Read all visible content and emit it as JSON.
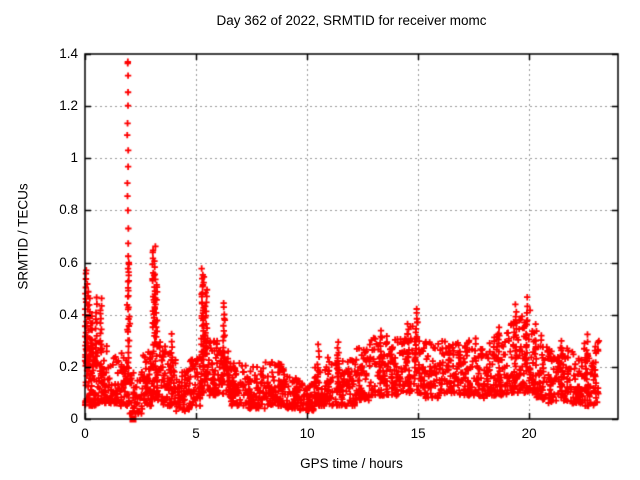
{
  "page": {
    "background": "#ffffff",
    "text_color": "#000000"
  },
  "chart_data": {
    "type": "scatter",
    "title": "Day 362 of 2022, SRMTID for receiver momc",
    "xlabel": "GPS time / hours",
    "ylabel": "SRMTID / TECUs",
    "xlim": [
      0,
      24
    ],
    "ylim": [
      0,
      1.4
    ],
    "xticks": [
      0,
      5,
      10,
      15,
      20
    ],
    "xtick_labels": [
      "0",
      "5",
      "10",
      "15",
      "20"
    ],
    "yticks": [
      0,
      0.2,
      0.4,
      0.6,
      0.8,
      1.0,
      1.2,
      1.4
    ],
    "ytick_labels": [
      "0",
      "0.2",
      "0.4",
      "0.6",
      "0.8",
      "1",
      "1.2",
      "1.4"
    ],
    "grid": true,
    "legend": "none",
    "marker": "plus",
    "marker_color": "#ff0000",
    "axis_color": "#000000",
    "grid_color": "#9a9a9a",
    "max_point": {
      "x": 1.93,
      "y": 1.37
    },
    "square_marker": {
      "x": 2.16,
      "y": 0.0
    },
    "data_x_end": 23.15,
    "seed": 20221228,
    "baseline_segments": [
      [
        0.0,
        0.5,
        0.05,
        0.32,
        60
      ],
      [
        0.5,
        1.0,
        0.06,
        0.3,
        55
      ],
      [
        1.0,
        1.5,
        0.06,
        0.24,
        50
      ],
      [
        1.5,
        2.0,
        0.05,
        0.26,
        50
      ],
      [
        2.0,
        2.6,
        0.02,
        0.18,
        48
      ],
      [
        2.6,
        3.0,
        0.05,
        0.26,
        45
      ],
      [
        3.0,
        3.5,
        0.07,
        0.3,
        55
      ],
      [
        3.5,
        4.1,
        0.05,
        0.28,
        55
      ],
      [
        4.1,
        4.7,
        0.03,
        0.2,
        50
      ],
      [
        4.7,
        5.2,
        0.05,
        0.24,
        48
      ],
      [
        5.2,
        5.6,
        0.1,
        0.32,
        45
      ],
      [
        5.6,
        6.0,
        0.09,
        0.3,
        45
      ],
      [
        6.0,
        6.5,
        0.08,
        0.28,
        50
      ],
      [
        6.5,
        7.3,
        0.05,
        0.22,
        70
      ],
      [
        7.3,
        8.1,
        0.04,
        0.2,
        70
      ],
      [
        8.1,
        9.0,
        0.05,
        0.22,
        78
      ],
      [
        9.0,
        9.6,
        0.04,
        0.17,
        52
      ],
      [
        9.6,
        10.3,
        0.03,
        0.15,
        58
      ],
      [
        10.3,
        10.9,
        0.05,
        0.2,
        52
      ],
      [
        10.9,
        11.6,
        0.05,
        0.24,
        60
      ],
      [
        11.6,
        12.2,
        0.05,
        0.23,
        54
      ],
      [
        12.2,
        12.8,
        0.07,
        0.28,
        55
      ],
      [
        12.8,
        13.6,
        0.09,
        0.33,
        70
      ],
      [
        13.6,
        14.4,
        0.09,
        0.31,
        70
      ],
      [
        14.4,
        15.1,
        0.1,
        0.38,
        62
      ],
      [
        15.1,
        16.0,
        0.08,
        0.3,
        78
      ],
      [
        16.0,
        16.9,
        0.09,
        0.3,
        78
      ],
      [
        16.9,
        17.6,
        0.09,
        0.31,
        62
      ],
      [
        17.6,
        18.3,
        0.08,
        0.3,
        62
      ],
      [
        18.3,
        19.0,
        0.09,
        0.33,
        62
      ],
      [
        19.0,
        19.6,
        0.1,
        0.4,
        55
      ],
      [
        19.6,
        20.1,
        0.1,
        0.42,
        48
      ],
      [
        20.1,
        20.6,
        0.08,
        0.34,
        46
      ],
      [
        20.6,
        21.2,
        0.06,
        0.28,
        52
      ],
      [
        21.2,
        21.8,
        0.07,
        0.28,
        52
      ],
      [
        21.8,
        22.4,
        0.06,
        0.26,
        52
      ],
      [
        22.4,
        23.15,
        0.05,
        0.3,
        66
      ]
    ],
    "spike_columns": [
      [
        0.03,
        0.06,
        0.2,
        0.575,
        18
      ],
      [
        0.12,
        0.1,
        0.18,
        0.52,
        14
      ],
      [
        0.22,
        0.1,
        0.15,
        0.46,
        14
      ],
      [
        0.32,
        0.1,
        0.12,
        0.4,
        10
      ],
      [
        0.5,
        0.08,
        0.2,
        0.46,
        12
      ],
      [
        0.72,
        0.08,
        0.25,
        0.46,
        12
      ],
      [
        1.93,
        0.1,
        0.15,
        0.6,
        18
      ],
      [
        1.93,
        0.06,
        0.62,
        1.37,
        14
      ],
      [
        1.98,
        0.1,
        0.3,
        0.6,
        10
      ],
      [
        3.1,
        0.15,
        0.32,
        0.66,
        26
      ],
      [
        3.2,
        0.12,
        0.3,
        0.55,
        16
      ],
      [
        3.9,
        0.08,
        0.15,
        0.32,
        8
      ],
      [
        5.3,
        0.12,
        0.28,
        0.57,
        26
      ],
      [
        5.45,
        0.1,
        0.25,
        0.5,
        16
      ],
      [
        6.25,
        0.1,
        0.2,
        0.44,
        16
      ],
      [
        10.5,
        0.08,
        0.12,
        0.28,
        8
      ],
      [
        11.4,
        0.1,
        0.12,
        0.3,
        10
      ],
      [
        13.3,
        0.1,
        0.15,
        0.34,
        10
      ],
      [
        14.9,
        0.12,
        0.18,
        0.42,
        14
      ],
      [
        18.6,
        0.1,
        0.15,
        0.35,
        10
      ],
      [
        19.4,
        0.1,
        0.15,
        0.44,
        14
      ],
      [
        19.9,
        0.1,
        0.18,
        0.46,
        12
      ],
      [
        20.3,
        0.1,
        0.12,
        0.36,
        10
      ],
      [
        21.5,
        0.1,
        0.1,
        0.3,
        8
      ],
      [
        22.6,
        0.1,
        0.1,
        0.32,
        10
      ]
    ]
  }
}
